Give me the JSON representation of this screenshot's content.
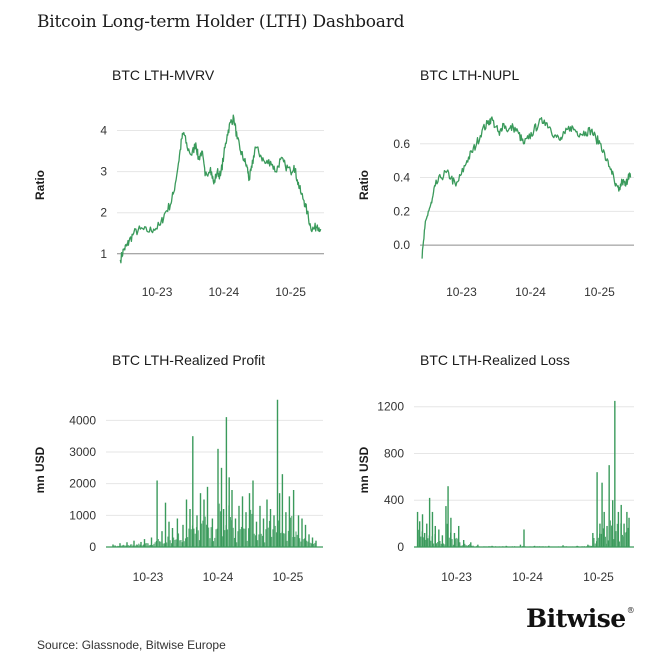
{
  "title": "Bitcoin Long-term Holder (LTH) Dashboard",
  "source": "Source: Glassnode, Bitwise Europe",
  "brand": "Bitwise",
  "brand_mark": "®",
  "line_color": "#3a9a5b",
  "zero_line_color": "#8c8c8c",
  "gridline_color": "#e6e6e6",
  "chart_data": [
    {
      "type": "line",
      "title": "BTC LTH-MVRV",
      "ylabel": "Ratio",
      "baseline": 1,
      "ylim": [
        0.8,
        4.5
      ],
      "yticks": [
        1,
        2,
        3,
        4
      ],
      "ytick_labels": [
        "1",
        "2",
        "3",
        "4"
      ],
      "xlim": [
        2022.9,
        2026.0
      ],
      "xticks": [
        2023.5,
        2024.5,
        2025.5
      ],
      "xtick_labels": [
        "10-23",
        "10-24",
        "10-25"
      ],
      "series": [
        {
          "x": [
            2022.95,
            2023.0,
            2023.05,
            2023.08,
            2023.15,
            2023.25,
            2023.35,
            2023.45,
            2023.55,
            2023.62,
            2023.7,
            2023.75,
            2023.82,
            2023.87,
            2023.9,
            2023.95,
            2024.02,
            2024.08,
            2024.12,
            2024.17,
            2024.22,
            2024.3,
            2024.35,
            2024.4,
            2024.45,
            2024.5,
            2024.55,
            2024.6,
            2024.65,
            2024.7,
            2024.75,
            2024.8,
            2024.85,
            2024.88,
            2024.92,
            2024.97,
            2025.05,
            2025.12,
            2025.2,
            2025.28,
            2025.35,
            2025.42,
            2025.5,
            2025.55,
            2025.6,
            2025.65,
            2025.7,
            2025.75,
            2025.8,
            2025.85,
            2025.9,
            2025.95
          ],
          "values": [
            0.85,
            1.1,
            1.2,
            1.3,
            1.5,
            1.6,
            1.55,
            1.6,
            1.7,
            2.0,
            2.2,
            2.5,
            3.2,
            3.8,
            3.95,
            3.6,
            3.4,
            3.7,
            3.3,
            3.5,
            2.9,
            3.1,
            2.7,
            3.0,
            2.9,
            3.4,
            3.9,
            4.2,
            4.3,
            3.8,
            3.5,
            3.3,
            3.1,
            2.8,
            3.1,
            3.6,
            3.4,
            3.2,
            3.25,
            3.0,
            3.3,
            3.15,
            3.0,
            3.15,
            2.8,
            2.5,
            2.3,
            2.0,
            1.65,
            1.6,
            1.7,
            1.6
          ]
        }
      ]
    },
    {
      "type": "line",
      "title": "BTC LTH-NUPL",
      "ylabel": "Ratio",
      "baseline": 0,
      "ylim": [
        -0.1,
        0.8
      ],
      "yticks": [
        0,
        0.2,
        0.4,
        0.6
      ],
      "ytick_labels": [
        "0.0",
        "0.2",
        "0.4",
        "0.6"
      ],
      "xlim": [
        2022.9,
        2026.0
      ],
      "xticks": [
        2023.5,
        2024.5,
        2025.5
      ],
      "xtick_labels": [
        "10-23",
        "10-24",
        "10-25"
      ],
      "series": [
        {
          "x": [
            2022.93,
            2022.97,
            2023.02,
            2023.07,
            2023.12,
            2023.2,
            2023.28,
            2023.35,
            2023.42,
            2023.5,
            2023.58,
            2023.65,
            2023.72,
            2023.8,
            2023.88,
            2023.93,
            2024.0,
            2024.05,
            2024.1,
            2024.18,
            2024.25,
            2024.33,
            2024.4,
            2024.47,
            2024.55,
            2024.62,
            2024.7,
            2024.78,
            2024.85,
            2024.93,
            2025.0,
            2025.08,
            2025.15,
            2025.22,
            2025.3,
            2025.38,
            2025.45,
            2025.52,
            2025.6,
            2025.67,
            2025.73,
            2025.78,
            2025.83,
            2025.88,
            2025.92,
            2025.95
          ],
          "values": [
            -0.08,
            0.1,
            0.2,
            0.25,
            0.35,
            0.4,
            0.43,
            0.4,
            0.35,
            0.42,
            0.5,
            0.55,
            0.6,
            0.68,
            0.72,
            0.75,
            0.7,
            0.65,
            0.72,
            0.68,
            0.7,
            0.66,
            0.6,
            0.63,
            0.68,
            0.72,
            0.74,
            0.7,
            0.65,
            0.62,
            0.66,
            0.7,
            0.68,
            0.66,
            0.67,
            0.68,
            0.63,
            0.6,
            0.5,
            0.45,
            0.35,
            0.32,
            0.38,
            0.35,
            0.42,
            0.4
          ]
        }
      ]
    },
    {
      "type": "spike",
      "title": "BTC LTH-Realized Profit",
      "ylabel": "mn USD",
      "baseline": 0,
      "ylim": [
        0,
        4800
      ],
      "yticks": [
        0,
        1000,
        2000,
        3000,
        4000
      ],
      "ytick_labels": [
        "0",
        "1000",
        "2000",
        "3000",
        "4000"
      ],
      "xlim": [
        2022.9,
        2026.0
      ],
      "xticks": [
        2023.5,
        2024.5,
        2025.5
      ],
      "xtick_labels": [
        "10-23",
        "10-24",
        "10-25"
      ],
      "series": [
        {
          "x": [
            2023.0,
            2023.1,
            2023.2,
            2023.3,
            2023.4,
            2023.45,
            2023.55,
            2023.63,
            2023.7,
            2023.75,
            2023.8,
            2023.85,
            2023.92,
            2024.0,
            2024.05,
            2024.1,
            2024.14,
            2024.2,
            2024.25,
            2024.3,
            2024.35,
            2024.42,
            2024.5,
            2024.55,
            2024.58,
            2024.62,
            2024.66,
            2024.7,
            2024.75,
            2024.8,
            2024.85,
            2024.9,
            2024.95,
            2025.0,
            2025.05,
            2025.1,
            2025.15,
            2025.2,
            2025.25,
            2025.3,
            2025.35,
            2025.38,
            2025.42,
            2025.47,
            2025.52,
            2025.58,
            2025.65,
            2025.7,
            2025.75,
            2025.8,
            2025.85,
            2025.9
          ],
          "values": [
            80,
            120,
            150,
            200,
            160,
            250,
            300,
            2100,
            500,
            1400,
            800,
            600,
            900,
            700,
            1500,
            1200,
            3500,
            1000,
            1700,
            1500,
            1900,
            900,
            3100,
            2500,
            1200,
            4100,
            2200,
            1800,
            900,
            1300,
            1600,
            1100,
            1700,
            2100,
            800,
            1300,
            900,
            1500,
            1200,
            1000,
            4650,
            1700,
            2300,
            1100,
            1600,
            1800,
            1000,
            900,
            700,
            400,
            300,
            200
          ]
        }
      ]
    },
    {
      "type": "spike",
      "title": "BTC LTH-Realized Loss",
      "ylabel": "mn USD",
      "baseline": 0,
      "ylim": [
        0,
        1300
      ],
      "yticks": [
        0,
        400,
        800,
        1200
      ],
      "ytick_labels": [
        "0",
        "400",
        "800",
        "1200"
      ],
      "xlim": [
        2022.9,
        2026.0
      ],
      "xticks": [
        2023.5,
        2024.5,
        2025.5
      ],
      "xtick_labels": [
        "10-23",
        "10-24",
        "10-25"
      ],
      "series": [
        {
          "x": [
            2022.95,
            2022.98,
            2023.02,
            2023.05,
            2023.08,
            2023.12,
            2023.16,
            2023.2,
            2023.25,
            2023.3,
            2023.35,
            2023.38,
            2023.42,
            2023.47,
            2023.53,
            2023.6,
            2023.7,
            2023.8,
            2024.0,
            2024.2,
            2024.4,
            2024.45,
            2024.6,
            2024.8,
            2025.0,
            2025.2,
            2025.35,
            2025.42,
            2025.48,
            2025.52,
            2025.55,
            2025.58,
            2025.62,
            2025.65,
            2025.7,
            2025.73,
            2025.78,
            2025.82,
            2025.86,
            2025.9,
            2025.93
          ],
          "values": [
            300,
            220,
            280,
            120,
            200,
            420,
            300,
            180,
            150,
            100,
            350,
            520,
            250,
            120,
            180,
            60,
            40,
            20,
            10,
            10,
            20,
            150,
            10,
            10,
            15,
            10,
            20,
            120,
            640,
            200,
            550,
            300,
            180,
            700,
            400,
            1250,
            300,
            360,
            200,
            300,
            250
          ]
        }
      ]
    }
  ]
}
